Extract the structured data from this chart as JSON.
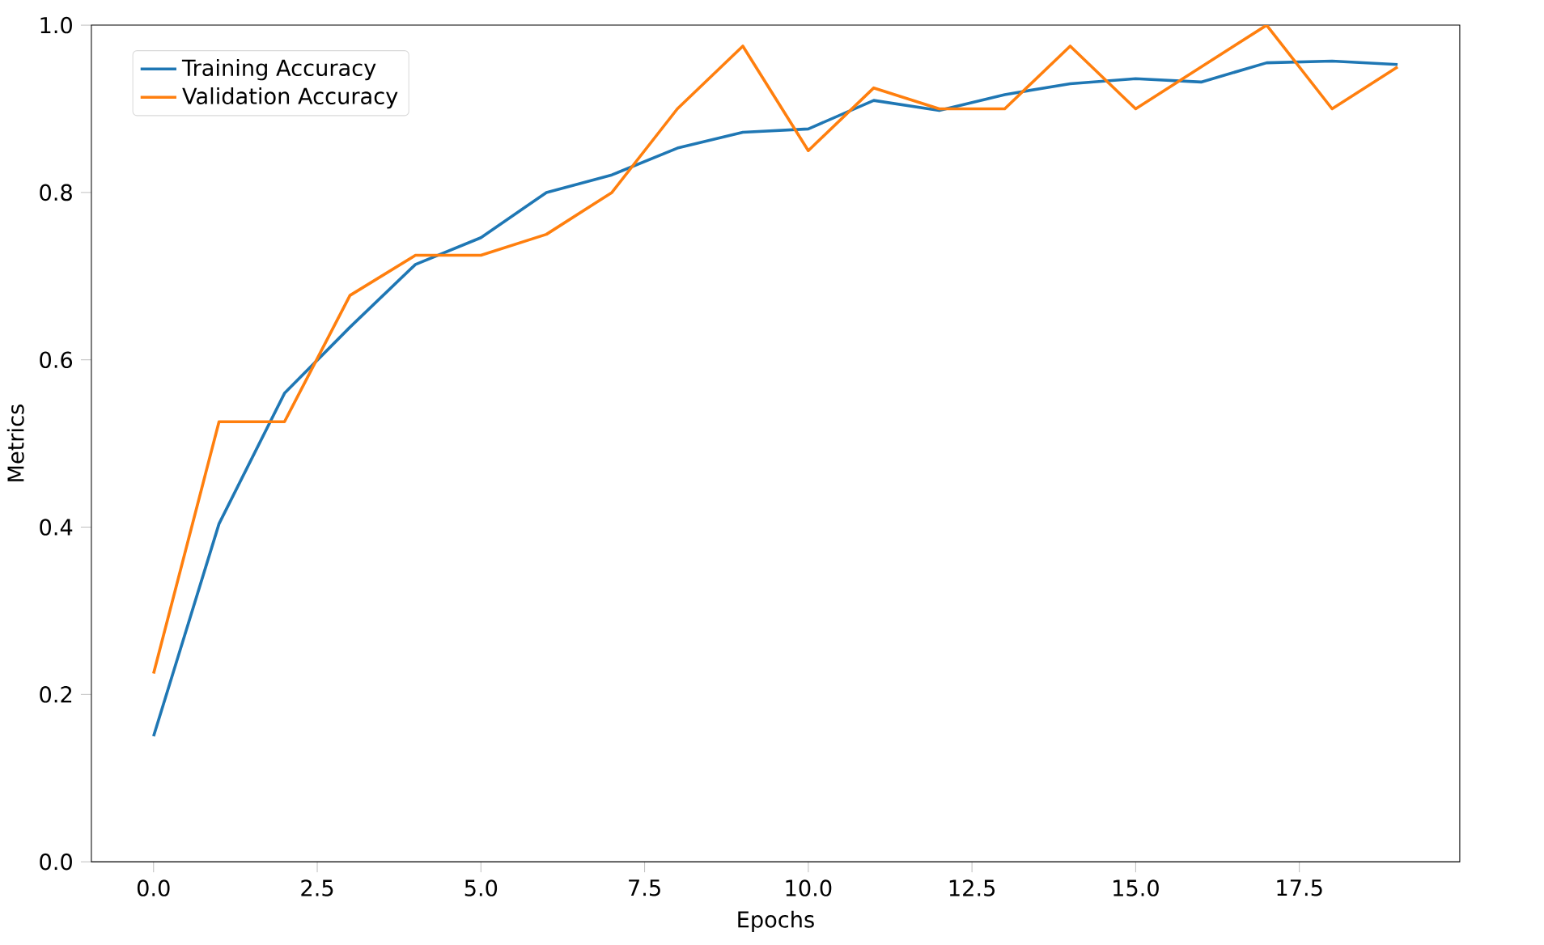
{
  "chart_data": {
    "type": "line",
    "xlabel": "Epochs",
    "ylabel": "Metrics",
    "x": [
      0,
      1,
      2,
      3,
      4,
      5,
      6,
      7,
      8,
      9,
      10,
      11,
      12,
      13,
      14,
      15,
      16,
      17,
      18,
      19
    ],
    "series": [
      {
        "name": "Training Accuracy",
        "color": "#1f77b4",
        "values": [
          0.15,
          0.404,
          0.56,
          0.639,
          0.714,
          0.746,
          0.8,
          0.821,
          0.853,
          0.872,
          0.876,
          0.91,
          0.898,
          0.917,
          0.93,
          0.936,
          0.932,
          0.955,
          0.957,
          0.953
        ]
      },
      {
        "name": "Validation Accuracy",
        "color": "#ff7f0e",
        "values": [
          0.225,
          0.526,
          0.526,
          0.677,
          0.725,
          0.725,
          0.75,
          0.8,
          0.9,
          0.975,
          0.85,
          0.925,
          0.9,
          0.9,
          0.975,
          0.9,
          0.95,
          1.0,
          0.9,
          0.95
        ]
      }
    ],
    "xlim": [
      -0.95,
      19.95
    ],
    "ylim": [
      0,
      1
    ],
    "xticks": [
      {
        "value": 0,
        "label": "0.0"
      },
      {
        "value": 2.5,
        "label": "2.5"
      },
      {
        "value": 5,
        "label": "5.0"
      },
      {
        "value": 7.5,
        "label": "7.5"
      },
      {
        "value": 10,
        "label": "10.0"
      },
      {
        "value": 12.5,
        "label": "12.5"
      },
      {
        "value": 15,
        "label": "15.0"
      },
      {
        "value": 17.5,
        "label": "17.5"
      }
    ],
    "yticks": [
      {
        "value": 0,
        "label": "0.0"
      },
      {
        "value": 0.2,
        "label": "0.2"
      },
      {
        "value": 0.4,
        "label": "0.4"
      },
      {
        "value": 0.6,
        "label": "0.6"
      },
      {
        "value": 0.8,
        "label": "0.8"
      },
      {
        "value": 1,
        "label": "1.0"
      }
    ],
    "legend": "top left",
    "marker": "none",
    "line_style": "solid",
    "grid": false
  }
}
